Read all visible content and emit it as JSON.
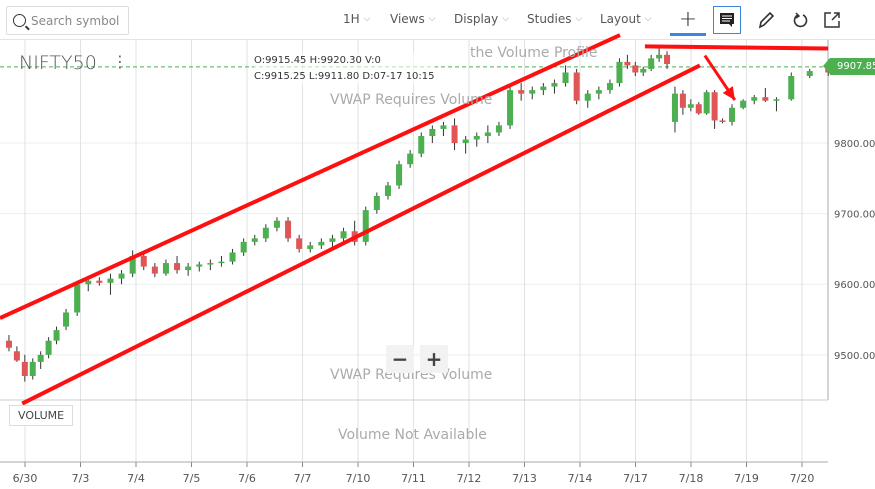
{
  "toolbar": {
    "search_placeholder": "Search symbol",
    "interval": "1H",
    "views": "Views",
    "display": "Display",
    "studies": "Studies",
    "layout": "Layout",
    "chevron": "⌵",
    "icons": [
      "crosshair-icon",
      "comment-icon",
      "pencil-icon",
      "undo-icon",
      "share-icon"
    ]
  },
  "chart": {
    "symbol": "NIFTY50",
    "menu": "⋮",
    "ohlc": {
      "o": "O:9915.45",
      "h": "H:9920.30",
      "v": "V:0",
      "c": "C:9915.25",
      "l": "L:9911.80",
      "d": "D:07-17 10:15"
    },
    "current_price": "9907.85",
    "overlay_top": "the Volume Profile",
    "overlay_vwap": "VWAP Requires Volume",
    "overlay_vwap2": "VWAP Requires Volume",
    "volume_label": "VOLUME",
    "volume_message": "Volume Not Available",
    "zoom_out": "−",
    "zoom_in": "+"
  },
  "colors": {
    "up": "#4caf50",
    "down": "#e05656",
    "drawing": "#ff1010",
    "price_tag": "#4caf50",
    "accent": "#3d86e0"
  },
  "chart_data": {
    "type": "candlestick",
    "ylim": [
      9436,
      9946
    ],
    "y_ticks": [
      "9500.00",
      "9600.00",
      "9700.00",
      "9800.00"
    ],
    "y_tick_values": [
      9500,
      9600,
      9700,
      9800
    ],
    "days": [
      {
        "label": "6/30",
        "candles": [
          [
            9520,
            9528,
            9505,
            9510
          ],
          [
            9505,
            9512,
            9490,
            9492
          ],
          [
            9490,
            9500,
            9462,
            9470
          ],
          [
            9470,
            9495,
            9465,
            9490
          ],
          [
            9490,
            9505,
            9480,
            9500
          ],
          [
            9500,
            9525,
            9495,
            9520
          ],
          [
            9520,
            9540,
            9515,
            9535
          ]
        ]
      },
      {
        "label": "7/3",
        "candles": [
          [
            9540,
            9565,
            9535,
            9560
          ],
          [
            9560,
            9605,
            9555,
            9600
          ],
          [
            9600,
            9612,
            9590,
            9605
          ],
          [
            9605,
            9610,
            9598,
            9602
          ],
          [
            9602,
            9615,
            9585,
            9608
          ]
        ]
      },
      {
        "label": "7/4",
        "candles": [
          [
            9608,
            9620,
            9600,
            9615
          ],
          [
            9615,
            9648,
            9610,
            9640
          ],
          [
            9640,
            9645,
            9620,
            9625
          ],
          [
            9625,
            9630,
            9610,
            9615
          ],
          [
            9615,
            9635,
            9612,
            9630
          ]
        ]
      },
      {
        "label": "7/5",
        "candles": [
          [
            9630,
            9640,
            9615,
            9620
          ],
          [
            9620,
            9630,
            9612,
            9625
          ],
          [
            9625,
            9632,
            9618,
            9628
          ],
          [
            9628,
            9635,
            9620,
            9630
          ],
          [
            9630,
            9640,
            9625,
            9632
          ]
        ]
      },
      {
        "label": "7/6",
        "candles": [
          [
            9632,
            9650,
            9628,
            9645
          ],
          [
            9645,
            9665,
            9640,
            9660
          ],
          [
            9660,
            9670,
            9655,
            9665
          ],
          [
            9665,
            9685,
            9660,
            9680
          ],
          [
            9680,
            9695,
            9675,
            9690
          ]
        ]
      },
      {
        "label": "7/7",
        "candles": [
          [
            9690,
            9695,
            9660,
            9665
          ],
          [
            9665,
            9670,
            9645,
            9650
          ],
          [
            9650,
            9660,
            9645,
            9655
          ],
          [
            9655,
            9665,
            9650,
            9660
          ],
          [
            9660,
            9670,
            9650,
            9665
          ]
        ]
      },
      {
        "label": "7/10",
        "candles": [
          [
            9665,
            9680,
            9660,
            9675
          ],
          [
            9675,
            9690,
            9655,
            9660
          ],
          [
            9660,
            9710,
            9655,
            9705
          ],
          [
            9705,
            9730,
            9700,
            9725
          ],
          [
            9725,
            9745,
            9720,
            9740
          ]
        ]
      },
      {
        "label": "7/11",
        "candles": [
          [
            9740,
            9775,
            9735,
            9770
          ],
          [
            9770,
            9790,
            9765,
            9785
          ],
          [
            9785,
            9815,
            9780,
            9810
          ],
          [
            9810,
            9825,
            9800,
            9820
          ],
          [
            9820,
            9830,
            9810,
            9825
          ]
        ]
      },
      {
        "label": "7/12",
        "candles": [
          [
            9825,
            9835,
            9790,
            9800
          ],
          [
            9800,
            9810,
            9785,
            9805
          ],
          [
            9805,
            9815,
            9795,
            9810
          ],
          [
            9810,
            9825,
            9800,
            9815
          ],
          [
            9815,
            9830,
            9810,
            9825
          ]
        ]
      },
      {
        "label": "7/13",
        "candles": [
          [
            9825,
            9880,
            9820,
            9875
          ],
          [
            9875,
            9885,
            9860,
            9870
          ],
          [
            9870,
            9880,
            9862,
            9875
          ],
          [
            9875,
            9885,
            9868,
            9880
          ],
          [
            9880,
            9890,
            9870,
            9885
          ]
        ]
      },
      {
        "label": "7/14",
        "candles": [
          [
            9885,
            9910,
            9880,
            9900
          ],
          [
            9900,
            9905,
            9855,
            9860
          ],
          [
            9860,
            9875,
            9850,
            9870
          ],
          [
            9870,
            9880,
            9862,
            9875
          ],
          [
            9875,
            9890,
            9870,
            9885
          ]
        ]
      },
      {
        "label": "7/17",
        "candles": [
          [
            9885,
            9920,
            9880,
            9915
          ],
          [
            9915,
            9925,
            9905,
            9910
          ],
          [
            9910,
            9915,
            9895,
            9900
          ],
          [
            9900,
            9908,
            9895,
            9905
          ],
          [
            9905,
            9925,
            9902,
            9920
          ],
          [
            9920,
            9935,
            9915,
            9925
          ],
          [
            9925,
            9930,
            9905,
            9912
          ]
        ]
      },
      {
        "label": "7/18",
        "candles": [
          [
            9830,
            9880,
            9815,
            9870
          ],
          [
            9870,
            9875,
            9840,
            9850
          ],
          [
            9850,
            9862,
            9845,
            9855
          ],
          [
            9855,
            9858,
            9840,
            9842
          ],
          [
            9842,
            9875,
            9840,
            9872
          ],
          [
            9872,
            9875,
            9820,
            9832
          ],
          [
            9832,
            9835,
            9828,
            9830
          ]
        ]
      },
      {
        "label": "7/19",
        "candles": [
          [
            9830,
            9855,
            9825,
            9850
          ],
          [
            9850,
            9862,
            9848,
            9860
          ],
          [
            9860,
            9868,
            9855,
            9865
          ],
          [
            9865,
            9878,
            9858,
            9860
          ],
          [
            9860,
            9865,
            9845,
            9862
          ]
        ]
      },
      {
        "label": "7/20",
        "candles": [
          [
            9862,
            9900,
            9860,
            9895
          ],
          [
            9895,
            9905,
            9892,
            9902
          ],
          [
            9910,
            9918,
            9895,
            9900
          ]
        ]
      }
    ],
    "drawings": [
      {
        "kind": "trendline",
        "from": [
          -0.45,
          9552
        ],
        "to": [
          10.72,
          9953
        ]
      },
      {
        "kind": "trendline",
        "from": [
          -0.05,
          9431
        ],
        "to": [
          12.16,
          9910
        ]
      },
      {
        "kind": "horizontal",
        "from": [
          11.17,
          9937
        ],
        "to": [
          14.47,
          9934
        ]
      },
      {
        "kind": "arrow",
        "from": [
          12.25,
          9924
        ],
        "to": [
          12.79,
          9861
        ]
      }
    ],
    "last_price_line": 9907.85
  }
}
